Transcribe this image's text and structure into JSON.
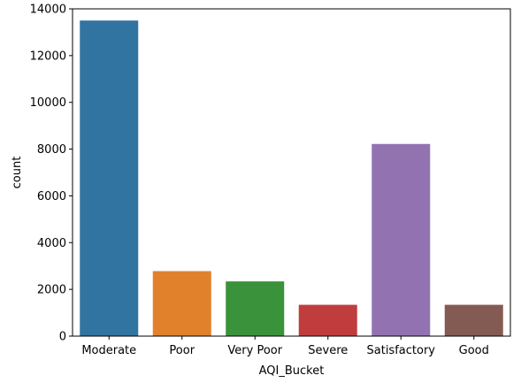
{
  "chart_data": {
    "type": "bar",
    "title": "",
    "xlabel": "AQI_Bucket",
    "ylabel": "count",
    "categories": [
      "Moderate",
      "Poor",
      "Very Poor",
      "Severe",
      "Satisfactory",
      "Good"
    ],
    "values": [
      13500,
      2780,
      2340,
      1340,
      8220,
      1340
    ],
    "colors": [
      "#3274a1",
      "#e1812c",
      "#3a923a",
      "#c03d3e",
      "#9372b2",
      "#845b53"
    ],
    "ylim": [
      0,
      14000
    ],
    "yticks": [
      0,
      2000,
      4000,
      6000,
      8000,
      10000,
      12000,
      14000
    ],
    "grid": false,
    "legend": "none"
  }
}
